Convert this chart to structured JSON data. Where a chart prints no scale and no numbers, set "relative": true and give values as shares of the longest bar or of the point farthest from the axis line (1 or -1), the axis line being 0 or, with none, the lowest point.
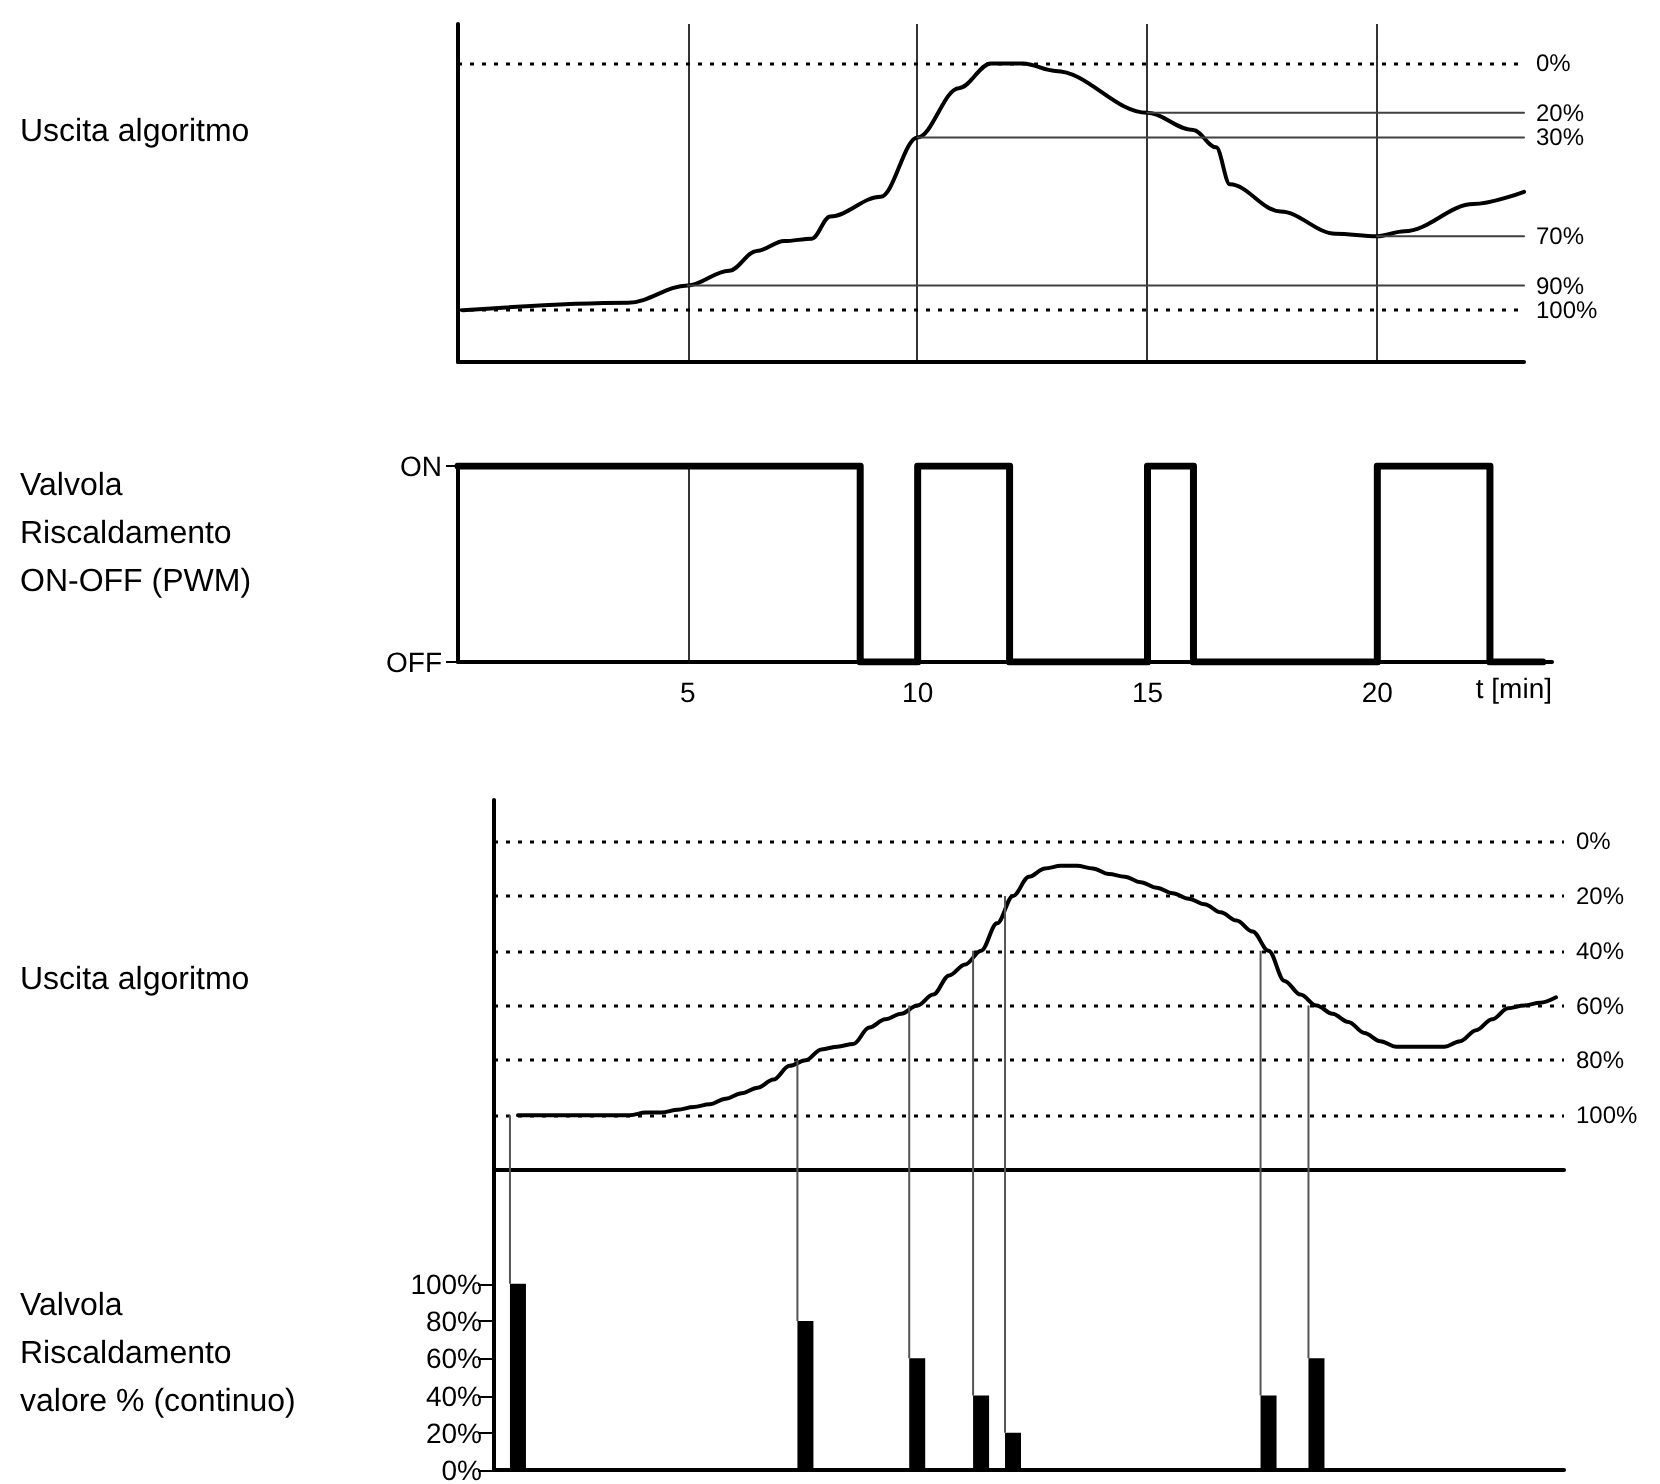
{
  "chart_data": [
    {
      "type": "line",
      "ylabel": "Uscita algoritmo",
      "xlim": [
        0,
        23.2
      ],
      "xticks": [
        5,
        10,
        15,
        20
      ],
      "ylim": [
        121,
        -16
      ],
      "yticks": [
        {
          "value": 0,
          "label": "0%"
        },
        {
          "value": 20,
          "label": "20%"
        },
        {
          "value": 30,
          "label": "30%"
        },
        {
          "value": 70,
          "label": "70%"
        },
        {
          "value": 90,
          "label": "90%"
        },
        {
          "value": 100,
          "label": "100%"
        }
      ],
      "tick_labels": "y",
      "grid": "x",
      "ref_lines": [
        {
          "axis": "y",
          "value": 0,
          "line_style": "dotted",
          "color": "#000000"
        },
        {
          "axis": "y",
          "value": 100,
          "line_style": "dotted",
          "color": "#000000"
        }
      ],
      "series": [
        {
          "color": "#000000",
          "x": [
            0.1,
            3.7,
            5,
            5.9,
            6.5,
            7.1,
            7.7,
            8.1,
            9.2,
            10,
            10.9,
            11.6,
            12.3,
            13,
            15,
            16,
            16.5,
            16.8,
            17.9,
            19.1,
            20,
            20.6,
            22.1,
            23.2
          ],
          "values": [
            100,
            97,
            90,
            84,
            76,
            72,
            71,
            62,
            54,
            30,
            10,
            0,
            0,
            3,
            20,
            27,
            34,
            49,
            60,
            69,
            70,
            68,
            57,
            52
          ]
        },
        {
          "color": "#404040",
          "x": [
            5,
            23.2
          ],
          "values": [
            90,
            90
          ]
        },
        {
          "color": "#404040",
          "x": [
            10,
            23.2
          ],
          "values": [
            30,
            30
          ]
        },
        {
          "color": "#404040",
          "x": [
            15,
            23.2
          ],
          "values": [
            20,
            20
          ]
        },
        {
          "color": "#404040",
          "x": [
            20,
            23.2
          ],
          "values": [
            70,
            70
          ]
        }
      ]
    },
    {
      "type": "step",
      "ylabel": "Valvola\nRiscaldamento\nON-OFF (PWM)",
      "xlabel": "t [min]",
      "xlim": [
        0,
        23.8
      ],
      "xticks": [
        5,
        10,
        15,
        20
      ],
      "relative": true,
      "annotations": [
        "OFF",
        "ON"
      ],
      "grid": "x",
      "series": [
        {
          "color": "#000000",
          "x": [
            0,
            8.75,
            10,
            12,
            15,
            16,
            20,
            22.45,
            23.6
          ],
          "values": [
            1,
            0,
            1,
            0,
            1,
            0,
            1,
            0,
            0
          ]
        }
      ]
    },
    {
      "type": "line",
      "ylabel": "Uscita algoritmo",
      "categories": [
        null,
        null,
        null,
        null,
        null,
        null,
        null,
        null,
        null,
        null,
        null,
        null,
        null,
        null,
        null,
        null,
        null,
        null,
        null,
        null,
        null,
        null,
        null,
        null,
        null,
        null,
        null,
        null,
        null,
        null,
        null,
        null,
        null,
        null,
        null,
        null,
        null,
        null,
        null,
        null,
        null,
        null,
        null,
        null,
        null,
        null,
        null,
        null,
        null,
        null,
        null,
        null,
        null,
        null,
        null,
        null,
        null,
        null,
        null,
        null,
        null,
        null,
        null,
        null,
        null,
        null,
        null
      ],
      "ylim": [
        120,
        -15
      ],
      "yticks": [
        {
          "value": 0,
          "label": "0%"
        },
        {
          "value": 20,
          "label": "20%"
        },
        {
          "value": 40,
          "label": "40%"
        },
        {
          "value": 60,
          "label": "60%"
        },
        {
          "value": 80,
          "label": "80%"
        },
        {
          "value": 100,
          "label": "100%"
        }
      ],
      "tick_labels": "y",
      "grid": "y",
      "series": [
        {
          "color": "#000000",
          "values": [
            null,
            100,
            100,
            100,
            100,
            100,
            100,
            100,
            100,
            99,
            99,
            98,
            97,
            96,
            94,
            92,
            90,
            87,
            82,
            80,
            76,
            75,
            74,
            68,
            65,
            63,
            60,
            56,
            49,
            45,
            40,
            30,
            20,
            13,
            10,
            9,
            9,
            10,
            12,
            13,
            15,
            17,
            19,
            21,
            23,
            26,
            29,
            33,
            40,
            51,
            56,
            60,
            63,
            66,
            70,
            73,
            75,
            75,
            75,
            75,
            73,
            69,
            65,
            61,
            60,
            59,
            57
          ]
        }
      ]
    },
    {
      "type": "bar",
      "ylabel": "Valvola\nRiscaldamento\nvalore % (continuo)",
      "categories": [
        null,
        null,
        null,
        null,
        null,
        null,
        null,
        null,
        null,
        null,
        null,
        null,
        null,
        null,
        null,
        null,
        null,
        null,
        null,
        null,
        null,
        null,
        null,
        null,
        null,
        null,
        null,
        null,
        null,
        null,
        null,
        null,
        null,
        null,
        null,
        null,
        null,
        null,
        null,
        null,
        null,
        null,
        null,
        null,
        null,
        null,
        null,
        null,
        null,
        null,
        null,
        null,
        null,
        null,
        null,
        null,
        null,
        null,
        null,
        null,
        null,
        null,
        null,
        null,
        null,
        null,
        null
      ],
      "ylim": [
        0,
        160
      ],
      "yticks": [
        {
          "value": 0,
          "label": "0%"
        },
        {
          "value": 20,
          "label": "20%"
        },
        {
          "value": 40,
          "label": "40%"
        },
        {
          "value": 60,
          "label": "60%"
        },
        {
          "value": 80,
          "label": "80%"
        },
        {
          "value": 100,
          "label": "100%"
        }
      ],
      "tick_labels": "y",
      "color": "#000000",
      "values": [
        null,
        100,
        null,
        null,
        null,
        null,
        null,
        null,
        null,
        null,
        null,
        null,
        null,
        null,
        null,
        null,
        null,
        null,
        null,
        80,
        null,
        null,
        null,
        null,
        null,
        null,
        60,
        null,
        null,
        null,
        40,
        null,
        20,
        null,
        null,
        null,
        null,
        null,
        null,
        null,
        null,
        null,
        null,
        null,
        null,
        null,
        null,
        null,
        40,
        null,
        null,
        60,
        null,
        null,
        null,
        null,
        null,
        null,
        null,
        null,
        null,
        null,
        null,
        null,
        null,
        null,
        null
      ]
    }
  ]
}
